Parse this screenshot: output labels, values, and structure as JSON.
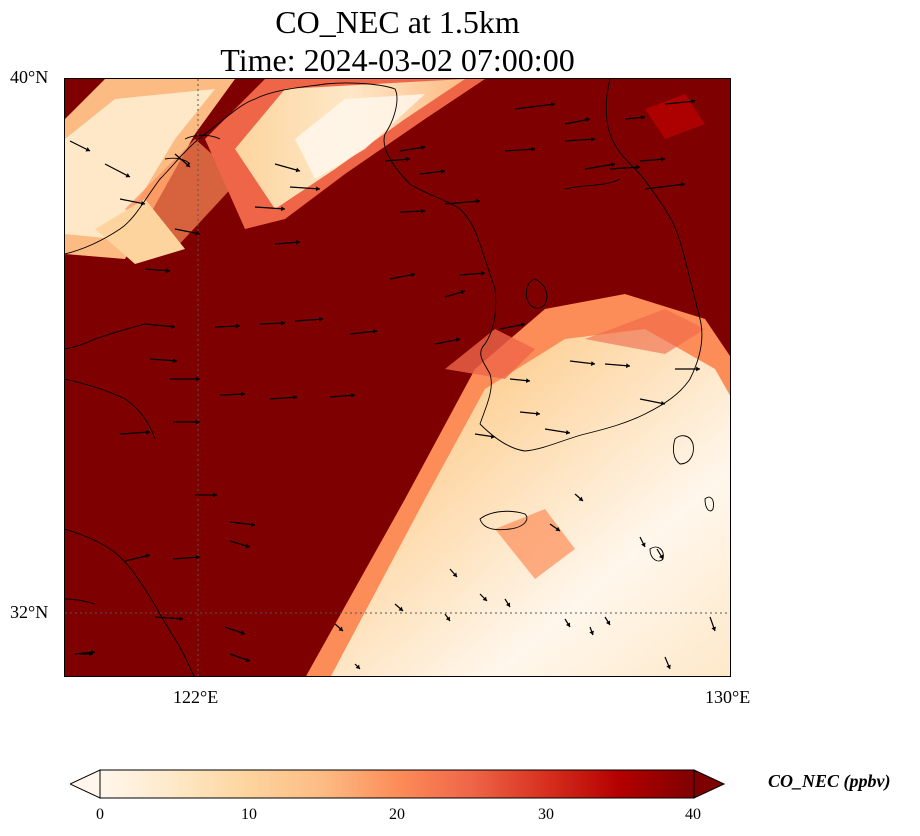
{
  "title_line1": "CO_NEC at 1.5km",
  "title_line2": "Time: 2024-03-02 07:00:00",
  "lat_labels": [
    "40°N",
    "32°N"
  ],
  "lon_labels": [
    "122°E",
    "130°E"
  ],
  "colorbar": {
    "label": "CO_NEC (ppbv)",
    "ticks": [
      "0",
      "10",
      "20",
      "30",
      "40"
    ],
    "min": 0,
    "max": 40,
    "extend": "both",
    "colormap": "OrRd",
    "colors": [
      "#fff7ec",
      "#fee8c8",
      "#fdd49e",
      "#fdbb84",
      "#fc8d59",
      "#ef6548",
      "#d7301f",
      "#b30000",
      "#7f0000"
    ]
  },
  "map": {
    "extent_lon": [
      120,
      130
    ],
    "extent_lat": [
      31,
      40
    ],
    "gridlines_lon": [
      122,
      130
    ],
    "gridlines_lat": [
      32,
      40
    ],
    "background_color": "#7f0000",
    "coastline_color": "#000000",
    "wind_vector_color": "#000000"
  }
}
